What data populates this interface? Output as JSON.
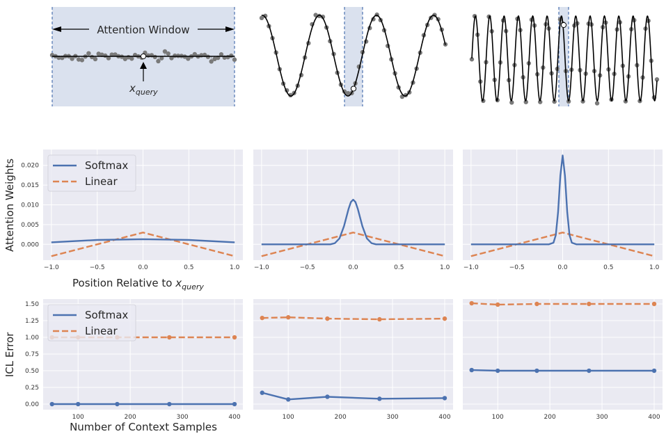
{
  "top_row": {
    "annotation": "Attention Window",
    "query_label": "x",
    "query_subscript": "query",
    "colors": {
      "window": "#dae1ee",
      "window_edge": "#4c72b0",
      "points": "#7a7a7a",
      "curve": "#000000"
    }
  },
  "colors": {
    "softmax": "#4c72b0",
    "linear": "#dd8452",
    "panel_bg": "#eaeaf2",
    "grid": "#ffffff"
  },
  "legend": {
    "softmax": "Softmax",
    "linear": "Linear",
    "placement": "upper-left"
  },
  "chart_data": [
    {
      "type": "line",
      "row": "attention-weights",
      "ylabel": "Attention Weights",
      "xlabel": "Position Relative to ",
      "xlabel_var": "x",
      "xlabel_sub": "query",
      "xlim": [
        -1.09,
        1.09
      ],
      "ylim": [
        -0.004,
        0.024
      ],
      "x_ticks": [
        "−1.0",
        "−0.5",
        "0.0",
        "0.5",
        "1.0"
      ],
      "x_tick_values": [
        -1,
        -0.5,
        0,
        0.5,
        1
      ],
      "y_ticks": [
        "0.000",
        "0.005",
        "0.010",
        "0.015",
        "0.020"
      ],
      "y_tick_values": [
        0,
        0.005,
        0.01,
        0.015,
        0.02
      ],
      "grid": true,
      "panels": [
        {
          "softmax": {
            "x": [
              -1,
              -0.5,
              0,
              0.5,
              1
            ],
            "y": [
              0.0005,
              0.0011,
              0.0013,
              0.0011,
              0.0005
            ]
          },
          "linear": {
            "x": [
              -1,
              0,
              1
            ],
            "y": [
              -0.003,
              0.003,
              -0.003
            ]
          }
        },
        {
          "softmax": {
            "x": [
              -1,
              -0.25,
              -0.2,
              -0.15,
              -0.1,
              -0.05,
              -0.025,
              0,
              0.025,
              0.05,
              0.1,
              0.15,
              0.2,
              0.25,
              1
            ],
            "y": [
              0,
              0,
              0.0003,
              0.0015,
              0.0046,
              0.009,
              0.0107,
              0.0113,
              0.0107,
              0.009,
              0.0046,
              0.0015,
              0.0003,
              0,
              0
            ]
          },
          "linear": {
            "x": [
              -1,
              0,
              1
            ],
            "y": [
              -0.003,
              0.003,
              -0.003
            ]
          }
        },
        {
          "softmax": {
            "x": [
              -1,
              -0.15,
              -0.1,
              -0.075,
              -0.05,
              -0.025,
              0,
              0.025,
              0.05,
              0.075,
              0.1,
              0.15,
              1
            ],
            "y": [
              0,
              0,
              0.0004,
              0.0023,
              0.0081,
              0.0174,
              0.0225,
              0.0174,
              0.0081,
              0.0023,
              0.0004,
              0,
              0
            ]
          },
          "linear": {
            "x": [
              -1,
              0,
              1
            ],
            "y": [
              -0.003,
              0.003,
              -0.003
            ]
          }
        }
      ]
    },
    {
      "type": "line",
      "row": "icl-error",
      "ylabel": "ICL Error",
      "xlabel": "Number of Context Samples",
      "xlim": [
        33,
        416
      ],
      "ylim": [
        -0.083,
        1.573
      ],
      "x_ticks": [
        "100",
        "200",
        "300",
        "400"
      ],
      "x_tick_values": [
        100,
        200,
        300,
        400
      ],
      "y_ticks": [
        "0.00",
        "0.25",
        "0.50",
        "0.75",
        "1.00",
        "1.25",
        "1.50"
      ],
      "y_tick_values": [
        0,
        0.25,
        0.5,
        0.75,
        1,
        1.25,
        1.5
      ],
      "grid": true,
      "x": [
        50,
        100,
        175,
        275,
        400
      ],
      "panels": [
        {
          "softmax": [
            0,
            0,
            0,
            0,
            0
          ],
          "linear": [
            1.0,
            1.0,
            1.0,
            1.0,
            1.0
          ]
        },
        {
          "softmax": [
            0.17,
            0.07,
            0.11,
            0.08,
            0.09
          ],
          "linear": [
            1.29,
            1.3,
            1.28,
            1.27,
            1.28
          ]
        },
        {
          "softmax": [
            0.51,
            0.5,
            0.5,
            0.5,
            0.5
          ],
          "linear": [
            1.51,
            1.49,
            1.5,
            1.5,
            1.5
          ]
        }
      ]
    }
  ]
}
